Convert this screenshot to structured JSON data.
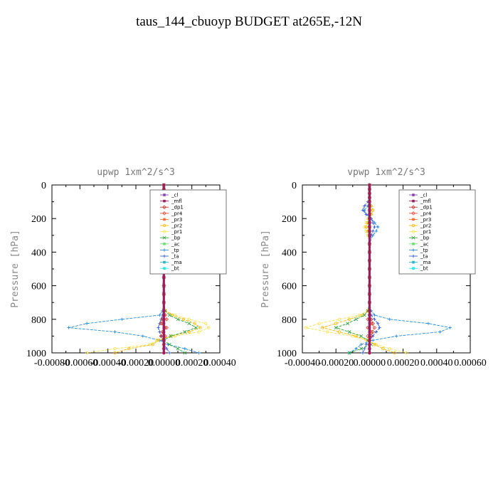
{
  "title": "taus_144_cbuoyp  BUDGET at265E,-12N",
  "colors": {
    "cl": "#8e44ad",
    "mfl": "#9b1d5b",
    "dp1": "#c0392b",
    "pr4": "#e74c3c",
    "pr3": "#ff6a33",
    "pr2": "#f5b800",
    "pr1": "#f3e35a",
    "bp": "#2e9e3a",
    "ac": "#6fe06f",
    "tp": "#2b8cd6",
    "ta": "#3a60d8",
    "ma": "#2bb3c9",
    "bt": "#2ae6e6",
    "frame": "#000000"
  },
  "chart_data": [
    {
      "type": "line",
      "title": "upwp   1xm^2/s^3",
      "ylabel": "Pressure [hPa]",
      "xlim": [
        -0.0008,
        0.0004
      ],
      "ylim": [
        1000,
        0
      ],
      "x_tick_labels": [
        "-0.00080",
        "-0.00060",
        "-0.00040",
        "-0.00020",
        "0.00000",
        "0.00020",
        "0.00040"
      ],
      "y_tick_labels": [
        "0",
        "200",
        "400",
        "600",
        "800",
        "1000"
      ],
      "legend": [
        "_cl",
        "_mfl",
        "_dp1",
        "_pr4",
        "_pr3",
        "_pr2",
        "_pr1",
        "_bp",
        "_ac",
        "_tp",
        "_ta",
        "_ma",
        "_bt"
      ],
      "legend_position": "top-right",
      "levels": [
        0,
        25,
        50,
        75,
        100,
        125,
        150,
        175,
        200,
        225,
        250,
        275,
        300,
        350,
        400,
        450,
        500,
        550,
        600,
        650,
        700,
        750,
        775,
        800,
        825,
        850,
        875,
        900,
        925,
        950,
        975,
        1000
      ],
      "series": [
        {
          "key": "tp",
          "values": [
            0,
            0,
            0,
            -5e-06,
            -1.5e-05,
            -2.5e-05,
            -3.5e-05,
            -4e-05,
            -3e-05,
            -1e-05,
            -5e-06,
            0,
            0,
            0,
            0,
            0,
            0,
            0,
            0,
            0,
            0,
            -1e-05,
            -3e-05,
            -0.0003,
            -0.00055,
            -0.00068,
            -0.00035,
            -0.00015,
            -3e-05,
            3e-05,
            0.00015,
            0.00025
          ]
        },
        {
          "key": "ta",
          "values": [
            0,
            0,
            0,
            0,
            -1e-05,
            -2e-05,
            -3e-05,
            -3e-05,
            -2e-05,
            -1e-05,
            0,
            0,
            0,
            0,
            0,
            0,
            0,
            0,
            0,
            0,
            0,
            0,
            -1e-05,
            -2e-05,
            -3e-05,
            -4e-05,
            -3e-05,
            -2e-05,
            -1e-05,
            0,
            2e-05,
            4e-05
          ]
        },
        {
          "key": "pr1",
          "values": [
            0,
            0,
            0,
            0,
            0,
            0,
            0,
            0,
            0,
            0,
            0,
            0,
            0,
            0,
            0,
            0,
            0,
            0,
            0,
            0,
            0,
            1e-05,
            8e-05,
            0.00018,
            0.0003,
            0.00032,
            0.00025,
            8e-05,
            -5e-05,
            -0.0001,
            -0.00035,
            -0.00055
          ]
        },
        {
          "key": "pr2",
          "values": [
            0,
            0,
            0,
            0,
            0,
            0,
            0,
            0,
            0,
            0,
            0,
            0,
            0,
            0,
            0,
            0,
            0,
            0,
            0,
            0,
            0,
            1e-05,
            6e-05,
            0.00014,
            0.00022,
            0.00026,
            0.00018,
            5e-05,
            -4e-05,
            -8e-05,
            -0.00025,
            -0.00035
          ]
        },
        {
          "key": "bp",
          "values": [
            0,
            0,
            0,
            0,
            0,
            0,
            0,
            0,
            0,
            0,
            0,
            0,
            0,
            0,
            0,
            0,
            0,
            0,
            0,
            0,
            0,
            1e-05,
            4e-05,
            0.0001,
            0.00018,
            0.00023,
            0.00015,
            5e-05,
            0,
            4e-05,
            0.0001,
            0.00015
          ]
        },
        {
          "key": "dp1",
          "values": [
            0,
            0,
            0,
            0,
            0,
            0,
            0,
            0,
            0,
            0,
            0,
            0,
            0,
            0,
            0,
            0,
            0,
            0,
            0,
            0,
            0,
            0,
            0,
            -1e-05,
            -2e-05,
            1e-05,
            -1e-05,
            -2e-05,
            0,
            0,
            0,
            0
          ]
        },
        {
          "key": "pr4",
          "values": [
            0,
            0,
            0,
            0,
            0,
            0,
            0,
            0,
            0,
            0,
            0,
            0,
            0,
            0,
            0,
            0,
            0,
            0,
            0,
            0,
            0,
            0,
            1e-05,
            2e-05,
            -1e-05,
            2e-05,
            -1e-05,
            1e-05,
            0,
            0,
            0,
            0
          ]
        },
        {
          "key": "cl",
          "values": [
            0,
            0,
            0,
            0,
            0,
            0,
            0,
            0,
            0,
            0,
            0,
            0,
            0,
            0,
            0,
            0,
            0,
            0,
            0,
            0,
            0,
            0,
            0,
            0,
            0,
            0,
            0,
            0,
            0,
            0,
            0,
            0
          ]
        },
        {
          "key": "mfl",
          "values": [
            0,
            0,
            0,
            0,
            0,
            0,
            0,
            0,
            0,
            0,
            0,
            0,
            0,
            0,
            0,
            0,
            0,
            0,
            0,
            0,
            0,
            0,
            0,
            0,
            0,
            0,
            0,
            0,
            0,
            0,
            0,
            0
          ]
        }
      ]
    },
    {
      "type": "line",
      "title": "vpwp   1xm^2/s^3",
      "ylabel": "Pressure [hPa]",
      "xlim": [
        -0.0004,
        0.0006
      ],
      "ylim": [
        1000,
        0
      ],
      "x_tick_labels": [
        "-0.00040",
        "-0.00020",
        "0.00000",
        "0.00020",
        "0.00040",
        "0.00060"
      ],
      "y_tick_labels": [
        "0",
        "200",
        "400",
        "600",
        "800",
        "1000"
      ],
      "legend": [
        "_cl",
        "_mfl",
        "_dp1",
        "_pr4",
        "_pr3",
        "_pr2",
        "_pr1",
        "_bp",
        "_ac",
        "_tp",
        "_ta",
        "_ma",
        "_bt"
      ],
      "legend_position": "top-right",
      "levels": [
        0,
        25,
        50,
        75,
        100,
        125,
        150,
        175,
        200,
        225,
        250,
        275,
        300,
        350,
        400,
        450,
        500,
        550,
        600,
        650,
        700,
        750,
        775,
        800,
        825,
        850,
        875,
        900,
        925,
        950,
        975,
        1000
      ],
      "series": [
        {
          "key": "tp",
          "values": [
            0,
            0,
            0,
            0,
            0,
            -1e-05,
            -3e-05,
            -2e-05,
            1e-05,
            3e-05,
            5e-05,
            4e-05,
            2e-05,
            0,
            0,
            0,
            0,
            0,
            0,
            0,
            0,
            1e-05,
            3e-05,
            0.00012,
            0.00035,
            0.00048,
            0.00042,
            0.00016,
            2e-05,
            -5e-05,
            -8e-05,
            -0.00012
          ]
        },
        {
          "key": "ta",
          "values": [
            0,
            0,
            0,
            0,
            -1e-05,
            -3e-05,
            -4e-05,
            -2e-05,
            1e-05,
            2e-05,
            3e-05,
            2e-05,
            1e-05,
            0,
            0,
            0,
            0,
            0,
            0,
            0,
            0,
            0,
            1e-05,
            3e-05,
            5e-05,
            6e-05,
            4e-05,
            2e-05,
            0,
            -2e-05,
            -3e-05,
            -4e-05
          ]
        },
        {
          "key": "pr1",
          "values": [
            0,
            0,
            0,
            0,
            0,
            1e-05,
            2e-05,
            1e-05,
            -1e-05,
            -2e-05,
            -3e-05,
            -2e-05,
            -1e-05,
            0,
            0,
            0,
            0,
            0,
            0,
            0,
            0,
            -1e-05,
            -6e-05,
            -0.00018,
            -0.0003,
            -0.00038,
            -0.00025,
            -0.0001,
            -2e-05,
            4e-05,
            0.00012,
            0.00022
          ]
        },
        {
          "key": "pr2",
          "values": [
            0,
            0,
            0,
            0,
            0,
            1e-05,
            2e-05,
            1e-05,
            0,
            -1e-05,
            -2e-05,
            -1e-05,
            0,
            0,
            0,
            0,
            0,
            0,
            0,
            0,
            0,
            -1e-05,
            -4e-05,
            -0.00012,
            -0.0002,
            -0.00028,
            -0.00018,
            -8e-05,
            -1e-05,
            3e-05,
            8e-05,
            0.00015
          ]
        },
        {
          "key": "bp",
          "values": [
            0,
            0,
            0,
            0,
            0,
            0,
            0,
            0,
            0,
            0,
            0,
            0,
            0,
            0,
            0,
            0,
            0,
            0,
            0,
            0,
            0,
            -1e-05,
            -3e-05,
            -8e-05,
            -0.00013,
            -0.0002,
            -0.00012,
            -5e-05,
            -1e-05,
            1e-05,
            -5e-05,
            -0.00012
          ]
        },
        {
          "key": "dp1",
          "values": [
            0,
            0,
            0,
            0,
            0,
            0,
            0,
            0,
            0,
            0,
            0,
            0,
            0,
            0,
            0,
            0,
            0,
            0,
            0,
            0,
            0,
            0,
            0,
            1e-05,
            2e-05,
            -1e-05,
            2e-05,
            1e-05,
            0,
            0,
            0,
            0
          ]
        },
        {
          "key": "pr4",
          "values": [
            0,
            0,
            0,
            0,
            0,
            0,
            0,
            0,
            0,
            0,
            0,
            0,
            0,
            0,
            0,
            0,
            0,
            0,
            0,
            0,
            0,
            0,
            0,
            -1e-05,
            1e-05,
            3e-05,
            1e-05,
            -1e-05,
            0,
            0,
            0,
            0
          ]
        },
        {
          "key": "cl",
          "values": [
            0,
            0,
            0,
            0,
            0,
            0,
            0,
            0,
            0,
            0,
            0,
            0,
            0,
            0,
            0,
            0,
            0,
            0,
            0,
            0,
            0,
            0,
            0,
            0,
            0,
            0,
            0,
            0,
            0,
            0,
            0,
            0
          ]
        },
        {
          "key": "mfl",
          "values": [
            0,
            0,
            0,
            0,
            0,
            0,
            0,
            0,
            0,
            0,
            0,
            0,
            0,
            0,
            0,
            0,
            0,
            0,
            0,
            0,
            0,
            0,
            0,
            0,
            0,
            0,
            0,
            0,
            0,
            0,
            0,
            0
          ]
        }
      ]
    }
  ]
}
